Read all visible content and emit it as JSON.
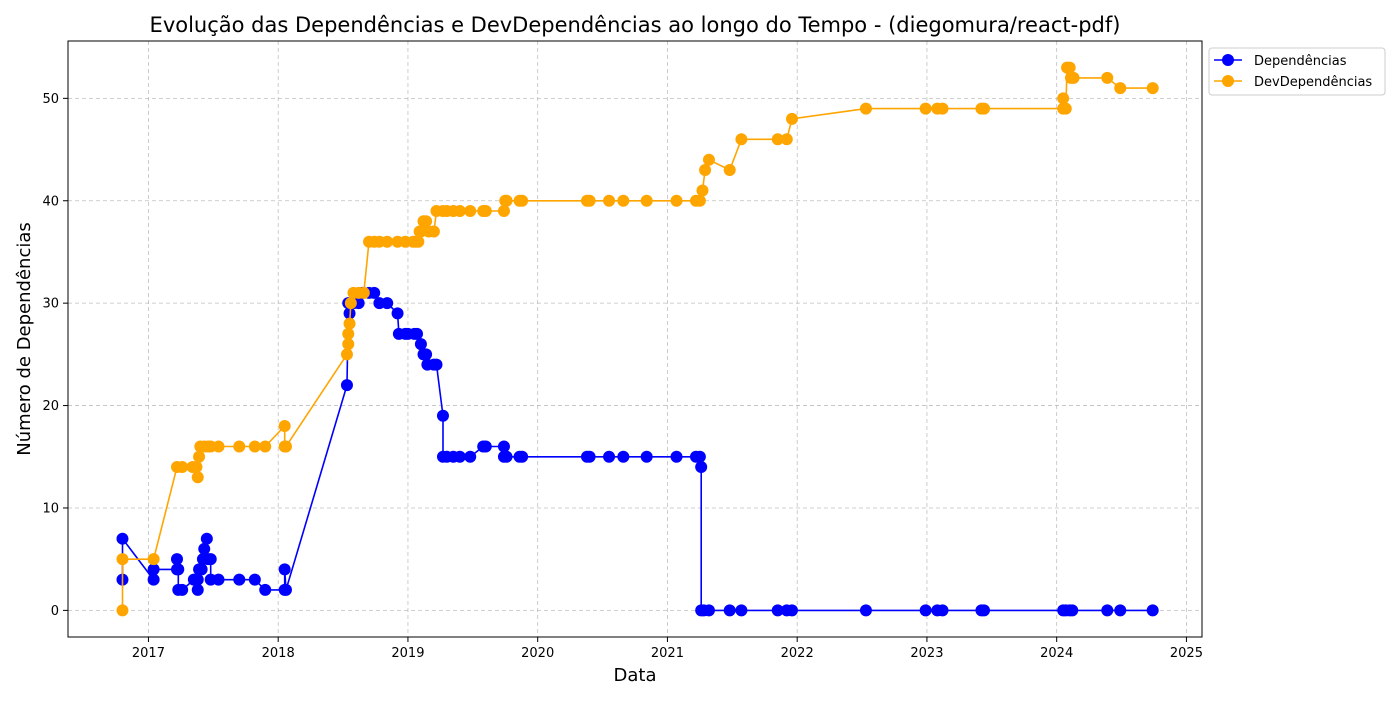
{
  "chart_data": {
    "type": "line",
    "title": "Evolução das Dependências e DevDependências ao longo do Tempo - (diegomura/react-pdf)",
    "xlabel": "Data",
    "ylabel": "Número de Dependências",
    "xlim": [
      2016.38,
      2025.12
    ],
    "ylim": [
      -2.6,
      55.6
    ],
    "x_ticks": [
      2017,
      2018,
      2019,
      2020,
      2021,
      2022,
      2023,
      2024,
      2025
    ],
    "y_ticks": [
      0,
      10,
      20,
      30,
      40,
      50
    ],
    "grid": true,
    "legend_position": "top-right, outside plot area",
    "series": [
      {
        "name": "Dependências",
        "color": "#0000ff",
        "points": [
          [
            2016.8,
            3
          ],
          [
            2016.8,
            7
          ],
          [
            2017.04,
            3
          ],
          [
            2017.04,
            4
          ],
          [
            2017.22,
            4
          ],
          [
            2017.22,
            5
          ],
          [
            2017.23,
            4
          ],
          [
            2017.23,
            2
          ],
          [
            2017.26,
            2
          ],
          [
            2017.35,
            3
          ],
          [
            2017.38,
            3
          ],
          [
            2017.38,
            2
          ],
          [
            2017.39,
            4
          ],
          [
            2017.41,
            4
          ],
          [
            2017.42,
            5
          ],
          [
            2017.43,
            6
          ],
          [
            2017.45,
            7
          ],
          [
            2017.46,
            5
          ],
          [
            2017.48,
            5
          ],
          [
            2017.48,
            3
          ],
          [
            2017.54,
            3
          ],
          [
            2017.7,
            3
          ],
          [
            2017.82,
            3
          ],
          [
            2017.9,
            2
          ],
          [
            2018.05,
            2
          ],
          [
            2018.05,
            4
          ],
          [
            2018.06,
            2
          ],
          [
            2018.53,
            22
          ],
          [
            2018.54,
            30
          ],
          [
            2018.55,
            29
          ],
          [
            2018.56,
            30
          ],
          [
            2018.58,
            30
          ],
          [
            2018.62,
            30
          ],
          [
            2018.65,
            31
          ],
          [
            2018.7,
            31
          ],
          [
            2018.74,
            31
          ],
          [
            2018.78,
            30
          ],
          [
            2018.84,
            30
          ],
          [
            2018.92,
            29
          ],
          [
            2018.93,
            27
          ],
          [
            2018.98,
            27
          ],
          [
            2019.0,
            27
          ],
          [
            2019.05,
            27
          ],
          [
            2019.07,
            27
          ],
          [
            2019.1,
            26
          ],
          [
            2019.12,
            25
          ],
          [
            2019.14,
            25
          ],
          [
            2019.15,
            24
          ],
          [
            2019.2,
            24
          ],
          [
            2019.22,
            24
          ],
          [
            2019.27,
            19
          ],
          [
            2019.27,
            15
          ],
          [
            2019.3,
            15
          ],
          [
            2019.35,
            15
          ],
          [
            2019.4,
            15
          ],
          [
            2019.48,
            15
          ],
          [
            2019.58,
            16
          ],
          [
            2019.6,
            16
          ],
          [
            2019.74,
            16
          ],
          [
            2019.74,
            15
          ],
          [
            2019.76,
            15
          ],
          [
            2019.86,
            15
          ],
          [
            2019.88,
            15
          ],
          [
            2020.38,
            15
          ],
          [
            2020.4,
            15
          ],
          [
            2020.55,
            15
          ],
          [
            2020.66,
            15
          ],
          [
            2020.84,
            15
          ],
          [
            2021.07,
            15
          ],
          [
            2021.22,
            15
          ],
          [
            2021.25,
            15
          ],
          [
            2021.26,
            14
          ],
          [
            2021.26,
            0
          ],
          [
            2021.28,
            0
          ],
          [
            2021.32,
            0
          ],
          [
            2021.48,
            0
          ],
          [
            2021.57,
            0
          ],
          [
            2021.85,
            0
          ],
          [
            2021.92,
            0
          ],
          [
            2021.96,
            0
          ],
          [
            2022.53,
            0
          ],
          [
            2022.99,
            0
          ],
          [
            2023.08,
            0
          ],
          [
            2023.12,
            0
          ],
          [
            2023.42,
            0
          ],
          [
            2023.44,
            0
          ],
          [
            2024.05,
            0
          ],
          [
            2024.07,
            0
          ],
          [
            2024.1,
            0
          ],
          [
            2024.12,
            0
          ],
          [
            2024.39,
            0
          ],
          [
            2024.49,
            0
          ],
          [
            2024.74,
            0
          ]
        ]
      },
      {
        "name": "DevDependências",
        "color": "#ffa500",
        "points": [
          [
            2016.8,
            0
          ],
          [
            2016.8,
            5
          ],
          [
            2017.04,
            5
          ],
          [
            2017.22,
            14
          ],
          [
            2017.26,
            14
          ],
          [
            2017.34,
            14
          ],
          [
            2017.37,
            14
          ],
          [
            2017.38,
            13
          ],
          [
            2017.39,
            15
          ],
          [
            2017.4,
            16
          ],
          [
            2017.43,
            16
          ],
          [
            2017.46,
            16
          ],
          [
            2017.48,
            16
          ],
          [
            2017.54,
            16
          ],
          [
            2017.7,
            16
          ],
          [
            2017.82,
            16
          ],
          [
            2017.9,
            16
          ],
          [
            2018.05,
            18
          ],
          [
            2018.05,
            16
          ],
          [
            2018.06,
            16
          ],
          [
            2018.53,
            25
          ],
          [
            2018.54,
            26
          ],
          [
            2018.54,
            27
          ],
          [
            2018.55,
            28
          ],
          [
            2018.56,
            30
          ],
          [
            2018.58,
            31
          ],
          [
            2018.62,
            31
          ],
          [
            2018.66,
            31
          ],
          [
            2018.7,
            36
          ],
          [
            2018.74,
            36
          ],
          [
            2018.78,
            36
          ],
          [
            2018.84,
            36
          ],
          [
            2018.92,
            36
          ],
          [
            2018.98,
            36
          ],
          [
            2019.04,
            36
          ],
          [
            2019.06,
            36
          ],
          [
            2019.08,
            36
          ],
          [
            2019.09,
            37
          ],
          [
            2019.1,
            37
          ],
          [
            2019.12,
            38
          ],
          [
            2019.14,
            38
          ],
          [
            2019.16,
            37
          ],
          [
            2019.2,
            37
          ],
          [
            2019.22,
            39
          ],
          [
            2019.27,
            39
          ],
          [
            2019.3,
            39
          ],
          [
            2019.35,
            39
          ],
          [
            2019.4,
            39
          ],
          [
            2019.48,
            39
          ],
          [
            2019.58,
            39
          ],
          [
            2019.6,
            39
          ],
          [
            2019.74,
            39
          ],
          [
            2019.75,
            40
          ],
          [
            2019.76,
            40
          ],
          [
            2019.86,
            40
          ],
          [
            2019.88,
            40
          ],
          [
            2020.38,
            40
          ],
          [
            2020.4,
            40
          ],
          [
            2020.55,
            40
          ],
          [
            2020.66,
            40
          ],
          [
            2020.84,
            40
          ],
          [
            2021.07,
            40
          ],
          [
            2021.22,
            40
          ],
          [
            2021.25,
            40
          ],
          [
            2021.27,
            41
          ],
          [
            2021.29,
            43
          ],
          [
            2021.32,
            44
          ],
          [
            2021.48,
            43
          ],
          [
            2021.57,
            46
          ],
          [
            2021.85,
            46
          ],
          [
            2021.92,
            46
          ],
          [
            2021.96,
            48
          ],
          [
            2022.53,
            49
          ],
          [
            2022.99,
            49
          ],
          [
            2023.08,
            49
          ],
          [
            2023.12,
            49
          ],
          [
            2023.42,
            49
          ],
          [
            2023.44,
            49
          ],
          [
            2024.05,
            49
          ],
          [
            2024.05,
            50
          ],
          [
            2024.07,
            49
          ],
          [
            2024.08,
            53
          ],
          [
            2024.1,
            53
          ],
          [
            2024.11,
            52
          ],
          [
            2024.13,
            52
          ],
          [
            2024.39,
            52
          ],
          [
            2024.49,
            51
          ],
          [
            2024.74,
            51
          ]
        ]
      }
    ]
  }
}
